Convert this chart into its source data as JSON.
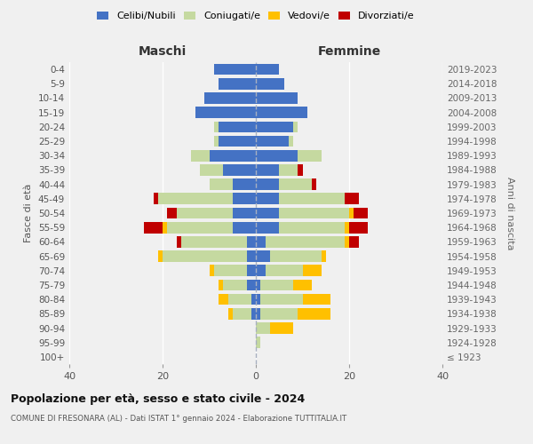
{
  "age_groups": [
    "100+",
    "95-99",
    "90-94",
    "85-89",
    "80-84",
    "75-79",
    "70-74",
    "65-69",
    "60-64",
    "55-59",
    "50-54",
    "45-49",
    "40-44",
    "35-39",
    "30-34",
    "25-29",
    "20-24",
    "15-19",
    "10-14",
    "5-9",
    "0-4"
  ],
  "birth_years": [
    "≤ 1923",
    "1924-1928",
    "1929-1933",
    "1934-1938",
    "1939-1943",
    "1944-1948",
    "1949-1953",
    "1954-1958",
    "1959-1963",
    "1964-1968",
    "1969-1973",
    "1974-1978",
    "1979-1983",
    "1984-1988",
    "1989-1993",
    "1994-1998",
    "1999-2003",
    "2004-2008",
    "2009-2013",
    "2014-2018",
    "2019-2023"
  ],
  "colors": {
    "celibi": "#4472c4",
    "coniugati": "#c5d9a0",
    "vedovi": "#ffc000",
    "divorziati": "#c00000"
  },
  "maschi": {
    "celibi": [
      0,
      0,
      0,
      1,
      1,
      2,
      2,
      2,
      2,
      5,
      5,
      5,
      5,
      7,
      10,
      8,
      8,
      13,
      11,
      8,
      9
    ],
    "coniugati": [
      0,
      0,
      0,
      4,
      5,
      5,
      7,
      18,
      14,
      14,
      12,
      16,
      5,
      5,
      4,
      1,
      1,
      0,
      0,
      0,
      0
    ],
    "vedovi": [
      0,
      0,
      0,
      1,
      2,
      1,
      1,
      1,
      0,
      1,
      0,
      0,
      0,
      0,
      0,
      0,
      0,
      0,
      0,
      0,
      0
    ],
    "divorziati": [
      0,
      0,
      0,
      0,
      0,
      0,
      0,
      0,
      1,
      4,
      2,
      1,
      0,
      0,
      0,
      0,
      0,
      0,
      0,
      0,
      0
    ]
  },
  "femmine": {
    "celibi": [
      0,
      0,
      0,
      1,
      1,
      1,
      2,
      3,
      2,
      5,
      5,
      5,
      5,
      5,
      9,
      7,
      8,
      11,
      9,
      6,
      5
    ],
    "coniugati": [
      0,
      1,
      3,
      8,
      9,
      7,
      8,
      11,
      17,
      14,
      15,
      14,
      7,
      4,
      5,
      1,
      1,
      0,
      0,
      0,
      0
    ],
    "vedovi": [
      0,
      0,
      5,
      7,
      6,
      4,
      4,
      1,
      1,
      1,
      1,
      0,
      0,
      0,
      0,
      0,
      0,
      0,
      0,
      0,
      0
    ],
    "divorziati": [
      0,
      0,
      0,
      0,
      0,
      0,
      0,
      0,
      2,
      4,
      3,
      3,
      1,
      1,
      0,
      0,
      0,
      0,
      0,
      0,
      0
    ]
  },
  "xlim": 40,
  "title": "Popolazione per età, sesso e stato civile - 2024",
  "subtitle": "COMUNE DI FRESONARA (AL) - Dati ISTAT 1° gennaio 2024 - Elaborazione TUTTITALIA.IT",
  "ylabel_left": "Fasce di età",
  "ylabel_right": "Anni di nascita",
  "xlabel_maschi": "Maschi",
  "xlabel_femmine": "Femmine",
  "legend_labels": [
    "Celibi/Nubili",
    "Coniugati/e",
    "Vedovi/e",
    "Divorziati/e"
  ],
  "bg_color": "#f0f0f0",
  "grid_color": "#ffffff"
}
